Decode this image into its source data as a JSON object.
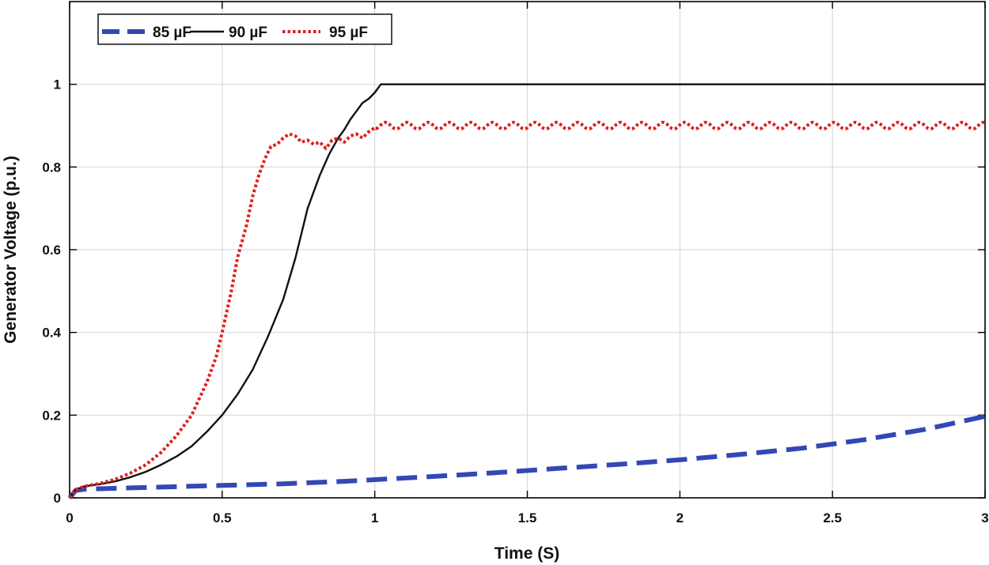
{
  "chart_data": {
    "type": "line",
    "title": "",
    "xlabel": "Time (S)",
    "ylabel": "Generator Voltage (p.u.)",
    "xlim": [
      0,
      3
    ],
    "ylim": [
      0,
      1.2
    ],
    "grid": true,
    "legend_position": "top-left",
    "x_ticks": [
      0,
      0.5,
      1,
      1.5,
      2,
      2.5,
      3
    ],
    "x_tick_labels": [
      "0",
      "0.5",
      "1",
      "1.5",
      "2",
      "2.5",
      "3"
    ],
    "y_ticks": [
      0,
      0.2,
      0.4,
      0.6,
      0.8,
      1
    ],
    "y_tick_labels": [
      "0",
      "0.2",
      "0.4",
      "0.6",
      "0.8",
      "1"
    ],
    "series": [
      {
        "name": "85 µF",
        "color": "#3348b5",
        "style": "dashed",
        "x": [
          0,
          0.02,
          0.05,
          0.1,
          0.2,
          0.3,
          0.4,
          0.5,
          0.6,
          0.7,
          0.8,
          0.9,
          1.0,
          1.2,
          1.4,
          1.6,
          1.8,
          2.0,
          2.2,
          2.4,
          2.6,
          2.8,
          3.0
        ],
        "y": [
          0,
          0.018,
          0.021,
          0.022,
          0.024,
          0.026,
          0.028,
          0.03,
          0.032,
          0.034,
          0.037,
          0.04,
          0.044,
          0.052,
          0.061,
          0.071,
          0.081,
          0.092,
          0.105,
          0.12,
          0.14,
          0.165,
          0.197
        ]
      },
      {
        "name": "90 µF",
        "color": "#111111",
        "style": "solid",
        "x": [
          0,
          0.02,
          0.05,
          0.1,
          0.15,
          0.2,
          0.25,
          0.3,
          0.35,
          0.4,
          0.45,
          0.5,
          0.55,
          0.6,
          0.65,
          0.7,
          0.72,
          0.74,
          0.76,
          0.78,
          0.8,
          0.82,
          0.85,
          0.88,
          0.9,
          0.92,
          0.94,
          0.96,
          0.98,
          1.0,
          1.02,
          1.05,
          1.5,
          2.0,
          2.5,
          3.0
        ],
        "y": [
          0,
          0.02,
          0.028,
          0.033,
          0.04,
          0.05,
          0.063,
          0.08,
          0.1,
          0.125,
          0.16,
          0.2,
          0.25,
          0.31,
          0.39,
          0.48,
          0.53,
          0.58,
          0.64,
          0.7,
          0.74,
          0.78,
          0.83,
          0.87,
          0.89,
          0.915,
          0.935,
          0.955,
          0.965,
          0.98,
          1.0,
          1.0,
          1.0,
          1.0,
          1.0,
          1.0
        ]
      },
      {
        "name": "95 µF",
        "color": "#e02020",
        "style": "dotted",
        "x": [
          0,
          0.02,
          0.05,
          0.1,
          0.15,
          0.2,
          0.25,
          0.3,
          0.35,
          0.4,
          0.45,
          0.48,
          0.5,
          0.53,
          0.55,
          0.58,
          0.6,
          0.62,
          0.64,
          0.66,
          0.68,
          0.7,
          0.72,
          0.74,
          0.76,
          0.78,
          0.8,
          0.82,
          0.84,
          0.86,
          0.88,
          0.9,
          0.92,
          0.94,
          0.96,
          0.98,
          1.0
        ],
        "y": [
          0,
          0.02,
          0.028,
          0.035,
          0.045,
          0.06,
          0.08,
          0.11,
          0.15,
          0.2,
          0.28,
          0.34,
          0.4,
          0.5,
          0.58,
          0.66,
          0.73,
          0.78,
          0.82,
          0.85,
          0.855,
          0.87,
          0.88,
          0.875,
          0.86,
          0.865,
          0.855,
          0.86,
          0.845,
          0.865,
          0.87,
          0.86,
          0.875,
          0.88,
          0.87,
          0.885,
          0.895
        ],
        "steady_state": {
          "x_start": 1.0,
          "x_end": 3.0,
          "mean": 0.9,
          "ripple_amplitude": 0.008,
          "ripple_period": 0.07
        }
      }
    ]
  }
}
